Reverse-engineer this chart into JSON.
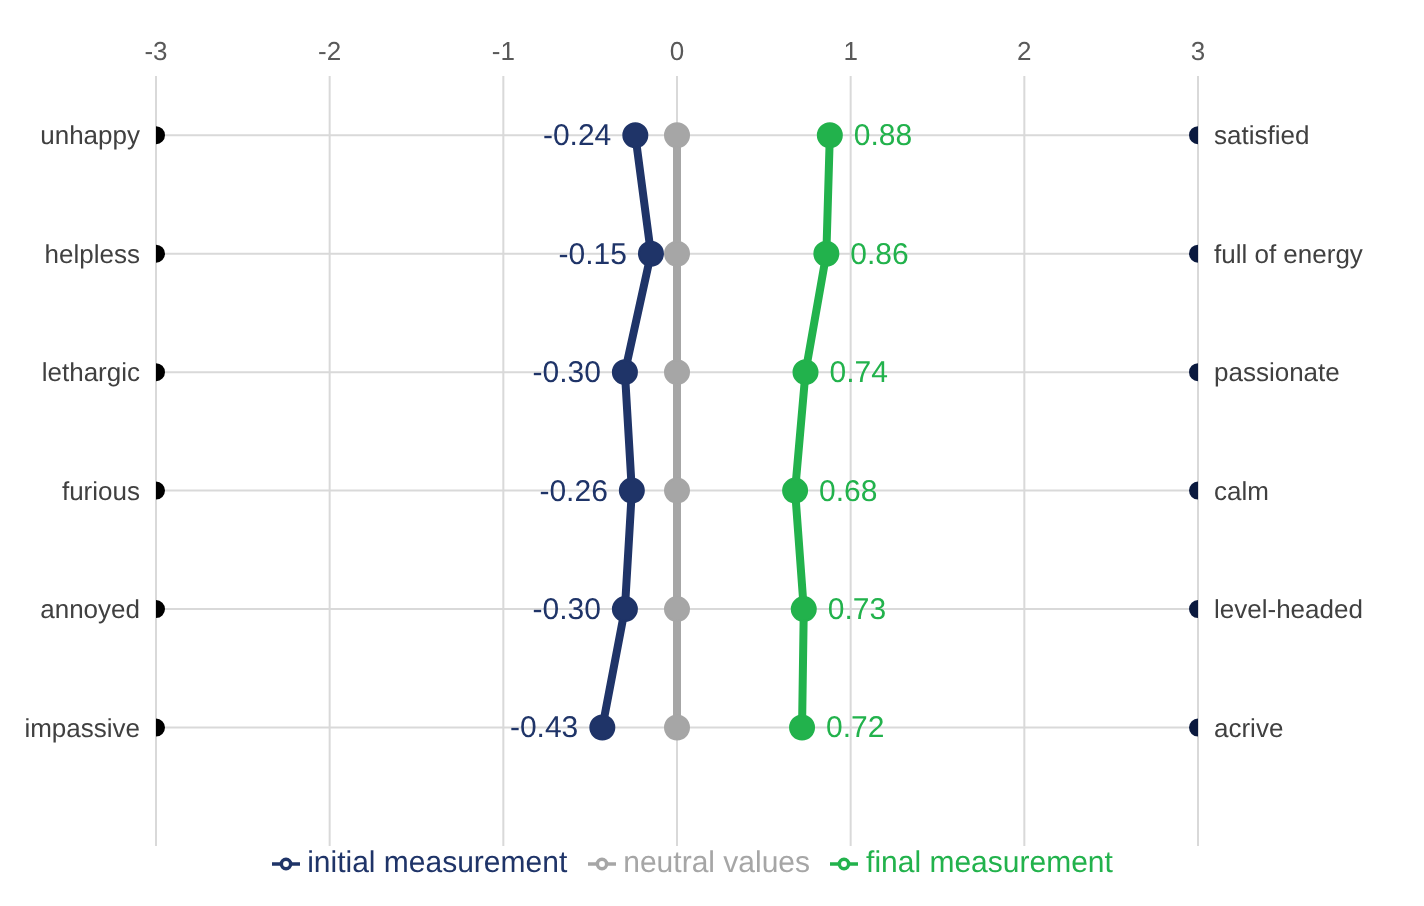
{
  "chart_data": {
    "type": "line",
    "orientation": "horizontal",
    "categories": [
      "unhappy",
      "helpless",
      "lethargic",
      "furious",
      "annoyed",
      "impassive"
    ],
    "y2_categories": [
      "satisfied",
      "full of energy",
      "passionate",
      "calm",
      "level-headed",
      "acrive"
    ],
    "series": [
      {
        "type": "scatter",
        "color": "#000000",
        "values": [
          -3,
          -3,
          -3,
          -3,
          -3,
          -3
        ]
      },
      {
        "type": "scatter",
        "color": "#0b1a3f",
        "values": [
          3,
          3,
          3,
          3,
          3,
          3
        ]
      },
      {
        "name": "initial measurement",
        "color": "#1f3468",
        "values": [
          -0.24,
          -0.15,
          -0.3,
          -0.26,
          -0.3,
          -0.43
        ],
        "value_labels": [
          "-0.24",
          "-0.15",
          "-0.30",
          "-0.26",
          "-0.30",
          "-0.43"
        ]
      },
      {
        "name": "neutral values",
        "color": "#a6a6a6",
        "values": [
          0,
          0,
          0,
          0,
          0,
          0
        ]
      },
      {
        "name": "final measurement",
        "color": "#22b24c",
        "values": [
          0.88,
          0.86,
          0.74,
          0.68,
          0.73,
          0.72
        ],
        "value_labels": [
          "0.88",
          "0.86",
          "0.74",
          "0.68",
          "0.73",
          "0.72"
        ]
      }
    ],
    "xlim": [
      -3,
      3
    ],
    "xticks": [
      -3,
      -2,
      -1,
      0,
      1,
      2,
      3
    ],
    "grid": true,
    "legend": "bottom",
    "marker": "circle",
    "line_style": "solid"
  }
}
